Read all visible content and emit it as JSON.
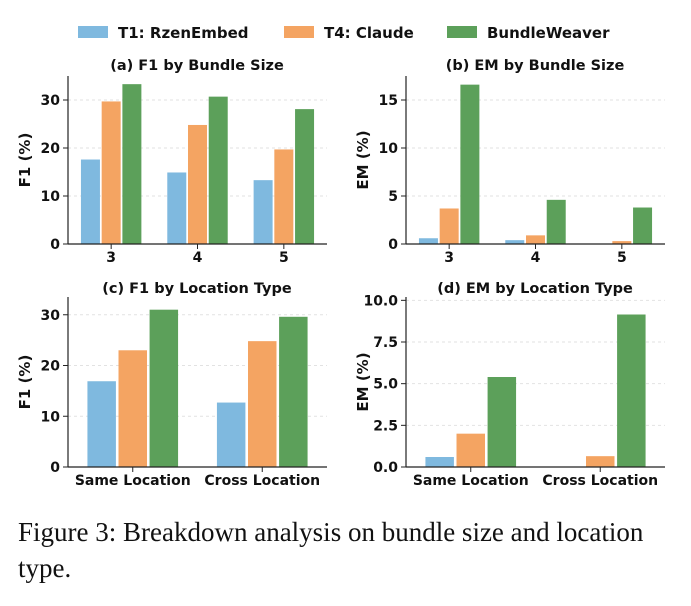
{
  "legend": {
    "entries": [
      {
        "label": "T1: RzenEmbed",
        "color": "#7fb9df"
      },
      {
        "label": "T4: Claude",
        "color": "#f4a462"
      },
      {
        "label": "BundleWeaver",
        "color": "#5ca05a"
      }
    ]
  },
  "caption": "Figure 3: Breakdown analysis on bundle size and location type.",
  "chart_data": [
    {
      "type": "bar",
      "title": "(a)  F1 by Bundle Size",
      "ylabel": "F1 (%)",
      "categories": [
        "3",
        "4",
        "5"
      ],
      "ylim": [
        0,
        35
      ],
      "yticks": [
        0,
        10,
        20,
        30
      ],
      "grid": true,
      "series": [
        {
          "name": "T1: RzenEmbed",
          "values": [
            17.6,
            14.9,
            13.3
          ]
        },
        {
          "name": "T4: Claude",
          "values": [
            29.7,
            24.8,
            19.7
          ]
        },
        {
          "name": "BundleWeaver",
          "values": [
            33.3,
            30.7,
            28.1
          ]
        }
      ]
    },
    {
      "type": "bar",
      "title": "(b)  EM by Bundle Size",
      "ylabel": "EM (%)",
      "categories": [
        "3",
        "4",
        "5"
      ],
      "ylim": [
        0,
        17.5
      ],
      "yticks": [
        0,
        5,
        10,
        15
      ],
      "grid": true,
      "series": [
        {
          "name": "T1: RzenEmbed",
          "values": [
            0.6,
            0.4,
            0.0
          ]
        },
        {
          "name": "T4: Claude",
          "values": [
            3.7,
            0.9,
            0.3
          ]
        },
        {
          "name": "BundleWeaver",
          "values": [
            16.6,
            4.6,
            3.8
          ]
        }
      ]
    },
    {
      "type": "bar",
      "title": "(c)  F1 by Location Type",
      "ylabel": "F1 (%)",
      "categories": [
        "Same Location",
        "Cross Location"
      ],
      "ylim": [
        0,
        33.5
      ],
      "yticks": [
        0,
        10,
        20,
        30
      ],
      "grid": true,
      "series": [
        {
          "name": "T1: RzenEmbed",
          "values": [
            16.9,
            12.7
          ]
        },
        {
          "name": "T4: Claude",
          "values": [
            23.0,
            24.8
          ]
        },
        {
          "name": "BundleWeaver",
          "values": [
            31.0,
            29.6
          ]
        }
      ]
    },
    {
      "type": "bar",
      "title": "(d)  EM by Location Type",
      "ylabel": "EM (%)",
      "categories": [
        "Same Location",
        "Cross Location"
      ],
      "ylim": [
        0,
        10.2
      ],
      "yticks": [
        "0.0",
        "2.5",
        "5.0",
        "7.5",
        "10.0"
      ],
      "grid": true,
      "series": [
        {
          "name": "T1: RzenEmbed",
          "values": [
            0.6,
            0.0
          ]
        },
        {
          "name": "T4: Claude",
          "values": [
            2.0,
            0.65
          ]
        },
        {
          "name": "BundleWeaver",
          "values": [
            5.4,
            9.15
          ]
        }
      ]
    }
  ]
}
